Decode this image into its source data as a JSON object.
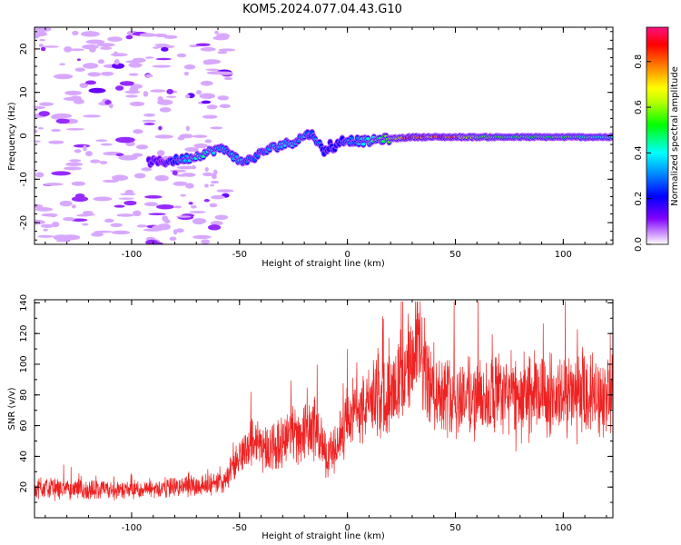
{
  "title": "KOM5.2024.077.04.43.G10",
  "chart_data": [
    {
      "type": "heatmap",
      "xlabel": "Height of straight line (km)",
      "ylabel": "Frequency (Hz)",
      "xlim": [
        -145,
        123
      ],
      "ylim": [
        -25,
        25
      ],
      "xticks": [
        -100,
        -50,
        0,
        50,
        100
      ],
      "yticks": [
        -20,
        -10,
        0,
        10,
        20
      ],
      "colorbar": {
        "label": "Normalized spectral amplitude",
        "range": [
          0,
          0.95
        ],
        "ticks": [
          0.0,
          0.2,
          0.4,
          0.6,
          0.8
        ]
      },
      "signal_track": {
        "x": [
          -92,
          -85,
          -78,
          -72,
          -66,
          -60,
          -55,
          -50,
          -45,
          -40,
          -36,
          -30,
          -25,
          -20,
          -17,
          -14,
          -11,
          -8,
          -6,
          -3,
          0,
          5,
          10,
          15,
          20,
          25,
          30,
          40,
          50,
          60,
          70,
          80,
          90,
          100,
          110,
          123
        ],
        "freq": [
          -6,
          -6,
          -5.5,
          -5,
          -4,
          -3,
          -3.5,
          -6,
          -5.5,
          -4,
          -3,
          -2,
          -1.5,
          0,
          0.5,
          -1,
          -4,
          -2,
          -3,
          -1,
          -1,
          -1.2,
          -1.3,
          -0.8,
          -0.7,
          -0.5,
          -0.3,
          -0.3,
          -0.3,
          -0.3,
          -0.3,
          -0.3,
          -0.3,
          -0.3,
          -0.3,
          -0.3
        ],
        "amplitude": [
          0.15,
          0.15,
          0.3,
          0.4,
          0.45,
          0.35,
          0.3,
          0.4,
          0.3,
          0.3,
          0.35,
          0.4,
          0.35,
          0.35,
          0.3,
          0.3,
          0.25,
          0.2,
          0.2,
          0.25,
          0.3,
          0.35,
          0.45,
          0.5,
          0.65,
          0.8,
          0.9,
          0.85,
          0.85,
          0.6,
          0.6,
          0.55,
          0.55,
          0.6,
          0.5,
          0.45
        ]
      },
      "noise_region_x": [
        -145,
        -55
      ]
    },
    {
      "type": "line",
      "xlabel": "Height of straight line (km)",
      "ylabel": "SNR (v/v)",
      "xlim": [
        -145,
        123
      ],
      "ylim": [
        0,
        142
      ],
      "xticks": [
        -100,
        -50,
        0,
        50,
        100
      ],
      "yticks": [
        20,
        40,
        60,
        80,
        100,
        120,
        140
      ],
      "color": "#ee2222",
      "trend": {
        "x": [
          -145,
          -120,
          -100,
          -80,
          -60,
          -55,
          -50,
          -45,
          -40,
          -35,
          -30,
          -25,
          -20,
          -15,
          -10,
          -5,
          0,
          5,
          10,
          15,
          20,
          25,
          30,
          33,
          36,
          40,
          50,
          60,
          70,
          80,
          90,
          100,
          110,
          123
        ],
        "y": [
          20,
          18,
          18,
          20,
          22,
          28,
          38,
          50,
          48,
          45,
          52,
          55,
          55,
          60,
          40,
          45,
          65,
          70,
          75,
          80,
          88,
          90,
          100,
          110,
          95,
          82,
          80,
          78,
          80,
          80,
          80,
          78,
          80,
          80
        ]
      }
    }
  ]
}
